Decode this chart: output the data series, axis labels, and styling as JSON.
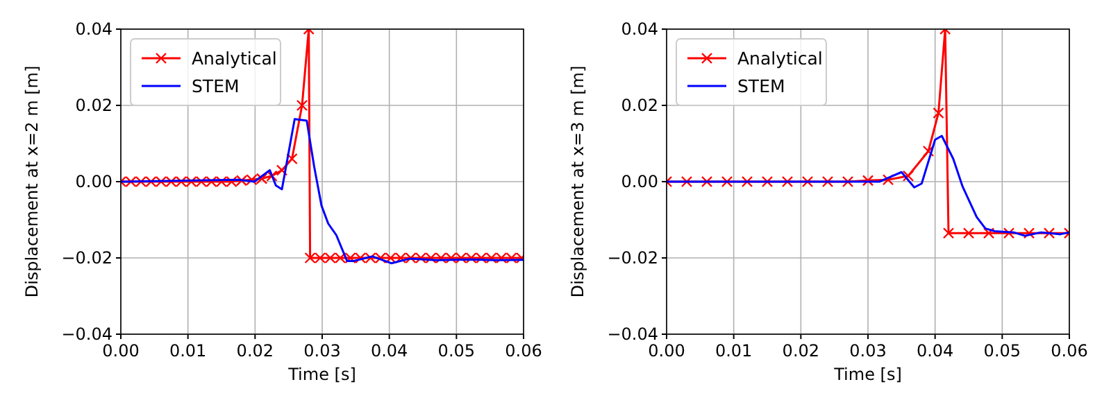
{
  "chart_data": [
    {
      "type": "line",
      "xlabel": "Time [s]",
      "ylabel": "Displacement at x=2 m [m]",
      "xlim": [
        0,
        0.06
      ],
      "ylim": [
        -0.04,
        0.04
      ],
      "xticks": [
        {
          "value": 0,
          "label": "0.00"
        },
        {
          "value": 0.01,
          "label": "0.01"
        },
        {
          "value": 0.02,
          "label": "0.02"
        },
        {
          "value": 0.03,
          "label": "0.03"
        },
        {
          "value": 0.04,
          "label": "0.04"
        },
        {
          "value": 0.05,
          "label": "0.05"
        },
        {
          "value": 0.06,
          "label": "0.06"
        }
      ],
      "yticks": [
        {
          "value": -0.04,
          "label": "−0.04"
        },
        {
          "value": -0.02,
          "label": "−0.02"
        },
        {
          "value": 0,
          "label": "0.00"
        },
        {
          "value": 0.02,
          "label": "0.02"
        },
        {
          "value": 0.04,
          "label": "0.04"
        }
      ],
      "grid": true,
      "legend": "top left",
      "series": [
        {
          "name": "Analytical",
          "color": "#ff0000",
          "marker": "cross",
          "x": [
            0,
            0.0015,
            0.003,
            0.0045,
            0.006,
            0.0075,
            0.009,
            0.0105,
            0.012,
            0.0135,
            0.015,
            0.0165,
            0.018,
            0.0195,
            0.021,
            0.0225,
            0.024,
            0.0255,
            0.027,
            0.028,
            0.0282,
            0.0297,
            0.0312,
            0.0327,
            0.0342,
            0.0357,
            0.0372,
            0.0387,
            0.0402,
            0.0417,
            0.0432,
            0.0447,
            0.0462,
            0.0477,
            0.0492,
            0.0507,
            0.0522,
            0.0537,
            0.0552,
            0.0567,
            0.0582,
            0.0597
          ],
          "values": [
            0,
            0,
            0,
            0,
            0,
            0,
            0,
            0,
            0,
            0,
            0,
            0,
            0.0003,
            0.0005,
            0.0008,
            0.0015,
            0.003,
            0.006,
            0.02,
            0.04,
            -0.02,
            -0.02,
            -0.02,
            -0.02,
            -0.02,
            -0.02,
            -0.02,
            -0.02,
            -0.02,
            -0.02,
            -0.02,
            -0.02,
            -0.02,
            -0.02,
            -0.02,
            -0.02,
            -0.02,
            -0.02,
            -0.02,
            -0.02,
            -0.02,
            -0.02
          ]
        },
        {
          "name": "STEM",
          "color": "#0000ff",
          "marker": "none",
          "x": [
            0,
            0.0175,
            0.0199,
            0.0222,
            0.0231,
            0.024,
            0.0259,
            0.0277,
            0.0288,
            0.0299,
            0.0309,
            0.0321,
            0.0337,
            0.0347,
            0.0375,
            0.0403,
            0.043,
            0.047,
            0.052,
            0.056,
            0.06
          ],
          "values": [
            0,
            0.0005,
            0,
            0.003,
            -0.001,
            -0.002,
            0.0164,
            0.016,
            0.004,
            -0.0063,
            -0.011,
            -0.014,
            -0.0208,
            -0.0208,
            -0.0196,
            -0.0214,
            -0.0202,
            -0.0206,
            -0.0204,
            -0.0206,
            -0.0205
          ]
        }
      ]
    },
    {
      "type": "line",
      "xlabel": "Time [s]",
      "ylabel": "Displacement at x=3 m [m]",
      "xlim": [
        0,
        0.06
      ],
      "ylim": [
        -0.04,
        0.04
      ],
      "xticks": [
        {
          "value": 0,
          "label": "0.00"
        },
        {
          "value": 0.01,
          "label": "0.01"
        },
        {
          "value": 0.02,
          "label": "0.02"
        },
        {
          "value": 0.03,
          "label": "0.03"
        },
        {
          "value": 0.04,
          "label": "0.04"
        },
        {
          "value": 0.05,
          "label": "0.05"
        },
        {
          "value": 0.06,
          "label": "0.06"
        }
      ],
      "yticks": [
        {
          "value": -0.04,
          "label": "−0.04"
        },
        {
          "value": -0.02,
          "label": "−0.02"
        },
        {
          "value": 0,
          "label": "0.00"
        },
        {
          "value": 0.02,
          "label": "0.02"
        },
        {
          "value": 0.04,
          "label": "0.04"
        }
      ],
      "grid": true,
      "legend": "top left",
      "series": [
        {
          "name": "Analytical",
          "color": "#ff0000",
          "marker": "cross",
          "x": [
            0,
            0.003,
            0.006,
            0.009,
            0.012,
            0.015,
            0.018,
            0.021,
            0.024,
            0.027,
            0.03,
            0.033,
            0.036,
            0.039,
            0.0405,
            0.0415,
            0.042,
            0.045,
            0.048,
            0.051,
            0.054,
            0.057,
            0.06
          ],
          "values": [
            0,
            0,
            0,
            0,
            0,
            0,
            0,
            0,
            0,
            0,
            0.0003,
            0.0005,
            0.0015,
            0.008,
            0.018,
            0.04,
            -0.0135,
            -0.0135,
            -0.0135,
            -0.0135,
            -0.0135,
            -0.0135,
            -0.0135
          ]
        },
        {
          "name": "STEM",
          "color": "#0000ff",
          "marker": "none",
          "x": [
            0,
            0.0317,
            0.035,
            0.0369,
            0.038,
            0.04,
            0.041,
            0.0427,
            0.0441,
            0.0462,
            0.0475,
            0.0489,
            0.0517,
            0.0534,
            0.0558,
            0.0586,
            0.06
          ],
          "values": [
            0,
            0,
            0.0025,
            -0.0015,
            -0.0005,
            0.011,
            0.012,
            0.006,
            -0.0013,
            -0.0093,
            -0.0123,
            -0.013,
            -0.0133,
            -0.0142,
            -0.0133,
            -0.0138,
            -0.0133
          ]
        }
      ]
    }
  ]
}
